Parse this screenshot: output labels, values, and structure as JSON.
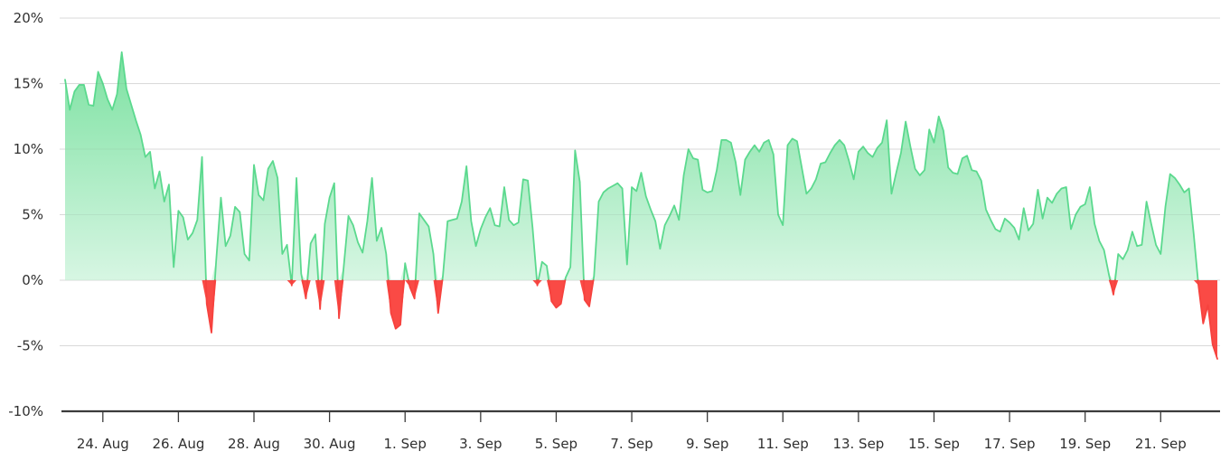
{
  "chart_data": {
    "type": "area",
    "title": "",
    "xlabel": "",
    "ylabel": "",
    "grid": true,
    "legend": false,
    "y_axis": {
      "min": -10,
      "max": 20,
      "unit": "%",
      "tick_values": [
        20,
        15,
        10,
        5,
        0,
        -5,
        -10
      ],
      "tick_labels": [
        "20%",
        "15%",
        "10%",
        "5%",
        "0%",
        "-5%",
        "-10%"
      ]
    },
    "x_axis": {
      "labels": [
        "24. Aug",
        "26. Aug",
        "28. Aug",
        "30. Aug",
        "1. Sep",
        "3. Sep",
        "5. Sep",
        "7. Sep",
        "9. Sep",
        "11. Sep",
        "13. Sep",
        "15. Sep",
        "17. Sep",
        "19. Sep",
        "21. Sep"
      ],
      "points_per_day": 8,
      "first_tick_index": 8,
      "tick_index_step": 16
    },
    "series": {
      "unit": "%",
      "interval_hours": 3,
      "values": [
        15.3,
        13.0,
        14.4,
        14.9,
        14.9,
        13.4,
        13.3,
        15.9,
        15.0,
        13.8,
        13.0,
        14.2,
        17.4,
        14.6,
        13.4,
        12.2,
        11.1,
        9.4,
        9.8,
        7.0,
        8.3,
        6.0,
        7.3,
        1.0,
        5.3,
        4.8,
        3.1,
        3.6,
        4.6,
        9.4,
        -1.8,
        -4.0,
        1.5,
        6.3,
        2.6,
        3.4,
        5.6,
        5.2,
        2.0,
        1.5,
        8.8,
        6.5,
        6.1,
        8.5,
        9.1,
        7.8,
        2.0,
        2.7,
        -0.4,
        7.8,
        0.5,
        -1.4,
        2.8,
        3.5,
        -2.2,
        4.3,
        6.3,
        7.4,
        -2.9,
        1.0,
        4.9,
        4.2,
        2.9,
        2.1,
        4.5,
        7.8,
        3.0,
        4.0,
        2.0,
        -2.5,
        -3.7,
        -3.4,
        1.3,
        -0.5,
        -1.4,
        5.1,
        4.6,
        4.1,
        2.0,
        -2.5,
        0.3,
        4.5,
        4.6,
        4.7,
        6.0,
        8.7,
        4.5,
        2.6,
        3.9,
        4.8,
        5.5,
        4.2,
        4.1,
        7.1,
        4.6,
        4.2,
        4.4,
        7.7,
        7.6,
        4.0,
        -0.4,
        1.4,
        1.1,
        -1.6,
        -2.1,
        -1.8,
        0.2,
        1.0,
        9.9,
        7.5,
        -1.5,
        -2.0,
        0.3,
        6.0,
        6.7,
        7.0,
        7.2,
        7.4,
        7.0,
        1.2,
        7.1,
        6.8,
        8.2,
        6.4,
        5.4,
        4.5,
        2.4,
        4.2,
        4.9,
        5.7,
        4.6,
        8.0,
        10.0,
        9.3,
        9.2,
        6.9,
        6.7,
        6.8,
        8.4,
        10.7,
        10.7,
        10.5,
        9.0,
        6.5,
        9.2,
        9.8,
        10.3,
        9.8,
        10.5,
        10.7,
        9.6,
        5.0,
        4.2,
        10.3,
        10.8,
        10.6,
        8.6,
        6.6,
        7.0,
        7.7,
        8.9,
        9.0,
        9.7,
        10.3,
        10.7,
        10.3,
        9.1,
        7.7,
        9.8,
        10.2,
        9.7,
        9.4,
        10.1,
        10.5,
        12.2,
        6.6,
        8.2,
        9.7,
        12.1,
        10.2,
        8.5,
        8.0,
        8.4,
        11.5,
        10.5,
        12.5,
        11.4,
        8.6,
        8.2,
        8.1,
        9.3,
        9.5,
        8.4,
        8.3,
        7.6,
        5.4,
        4.6,
        3.9,
        3.7,
        4.7,
        4.4,
        4.0,
        3.1,
        5.5,
        3.8,
        4.3,
        6.9,
        4.7,
        6.3,
        5.9,
        6.6,
        7.0,
        7.1,
        3.9,
        5.0,
        5.6,
        5.8,
        7.1,
        4.3,
        3.0,
        2.3,
        0.5,
        -1.1,
        2.0,
        1.6,
        2.3,
        3.7,
        2.6,
        2.7,
        6.0,
        4.3,
        2.7,
        2.0,
        5.6,
        8.1,
        7.8,
        7.3,
        6.7,
        7.0,
        3.5,
        -0.4,
        -3.3,
        -1.9,
        -4.9,
        -6.0
      ]
    },
    "colors": {
      "positive_line": "#5bd98e",
      "positive_fill_top": "#6ede97",
      "positive_fill_bottom": "#d7f6e3",
      "negative_line": "#f6423e",
      "negative_fill": "#fa4a45",
      "gridline": "#e6e6e6",
      "axis_line": "#3b3b3b",
      "label_text": "#303030"
    }
  }
}
